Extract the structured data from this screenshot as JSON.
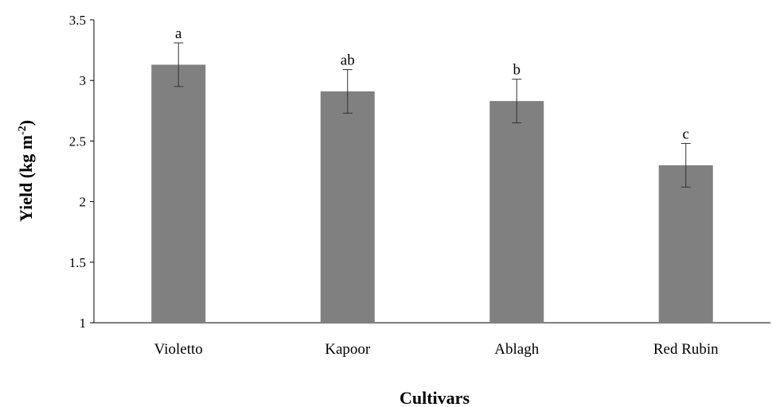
{
  "chart_data": {
    "type": "bar",
    "title": "",
    "xlabel": "Cultivars",
    "ylabel": {
      "main": "Yield (kg m",
      "sup": "-2",
      "close": ")"
    },
    "categories": [
      "Violetto",
      "Kapoor",
      "Ablagh",
      "Red Rubin"
    ],
    "values": [
      3.13,
      2.91,
      2.83,
      2.3
    ],
    "errors": [
      0.18,
      0.18,
      0.18,
      0.18
    ],
    "significance_letters": [
      "a",
      "ab",
      "b",
      "c"
    ],
    "ylim": [
      1,
      3.5
    ],
    "yticks": [
      "1",
      "1.5",
      "2",
      "2.5",
      "3",
      "3.5"
    ],
    "bar_color": "#808080",
    "grid": false,
    "legend": "none"
  }
}
